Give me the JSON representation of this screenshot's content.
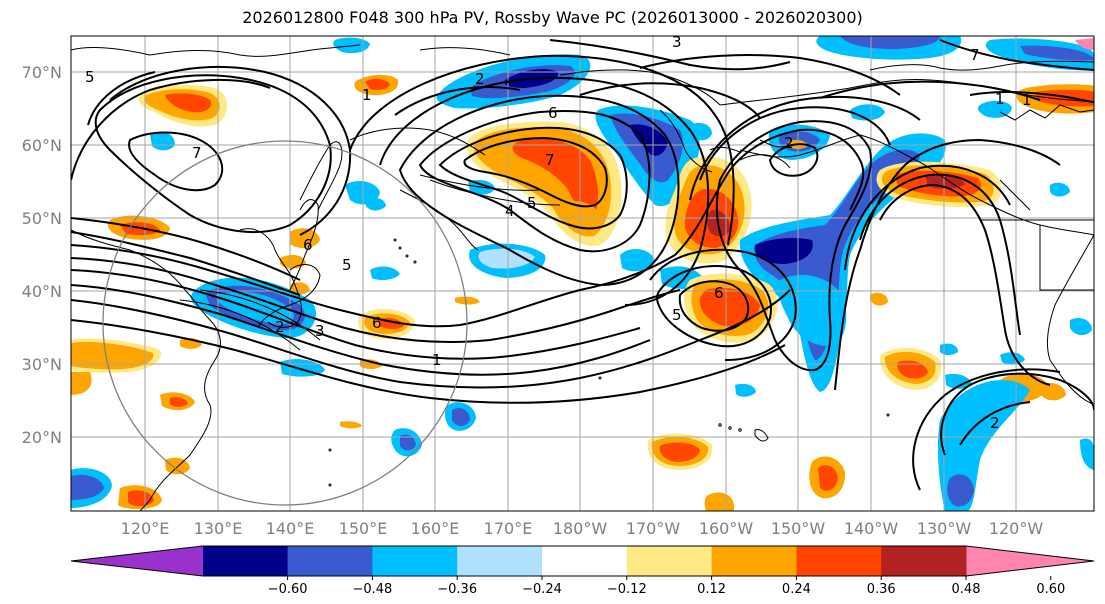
{
  "title": "2026012800 F048 300 hPa PV, Rossby Wave PC (2026013000 - 2026020300)",
  "lat_labels": [
    "70°N",
    "60°N",
    "50°N",
    "40°N",
    "30°N",
    "20°N"
  ],
  "lon_labels": [
    "120°E",
    "130°E",
    "140°E",
    "150°E",
    "160°E",
    "170°E",
    "180°W",
    "170°W",
    "160°W",
    "150°W",
    "140°W",
    "130°W",
    "120°W"
  ],
  "colorbar": {
    "colors": [
      "#9932cc",
      "#00008b",
      "#3a5bcf",
      "#00bfff",
      "#b0e2ff",
      "#ffffff",
      "#ffe985",
      "#ffa500",
      "#ff4500",
      "#b22222",
      "#ff85b0"
    ],
    "tick_labels": [
      "−0.60",
      "−0.48",
      "−0.36",
      "−0.24",
      "−0.12",
      "0.12",
      "0.24",
      "0.36",
      "0.48",
      "0.60"
    ]
  },
  "contour_labels": [
    "5",
    "7",
    "6",
    "7",
    "5",
    "4",
    "3",
    "7",
    "2",
    "1",
    "1",
    "6",
    "5",
    "6",
    "5",
    "1",
    "2",
    "1",
    "3",
    "2",
    "6",
    "2"
  ],
  "icons": {
    "range-ring": "circle-outline"
  }
}
